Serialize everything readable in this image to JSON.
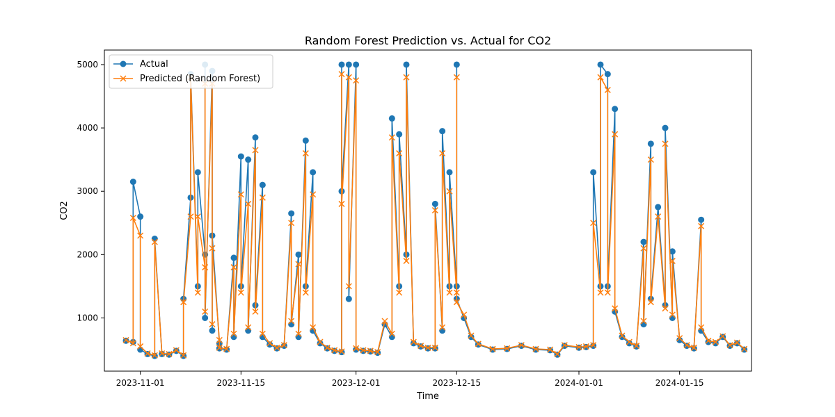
{
  "chart_data": {
    "type": "line",
    "title": "Random Forest Prediction vs. Actual for CO2",
    "xlabel": "Time",
    "ylabel": "CO2",
    "x_range": [
      "2023-10-27",
      "2024-01-25"
    ],
    "ylim": [
      160,
      5230
    ],
    "x_ticks": [
      "2023-11-01",
      "2023-11-15",
      "2023-12-01",
      "2023-12-15",
      "2024-01-01",
      "2024-01-15"
    ],
    "y_ticks": [
      1000,
      2000,
      3000,
      4000,
      5000
    ],
    "grid": false,
    "legend": "top-left",
    "series": [
      {
        "name": "Actual",
        "color": "#1f77b4",
        "marker": "circle",
        "points": [
          [
            "2023-10-30",
            640
          ],
          [
            "2023-10-31",
            620
          ],
          [
            "2023-10-31",
            3150
          ],
          [
            "2023-11-01",
            2600
          ],
          [
            "2023-11-01",
            500
          ],
          [
            "2023-11-02",
            430
          ],
          [
            "2023-11-03",
            400
          ],
          [
            "2023-11-03",
            2250
          ],
          [
            "2023-11-04",
            430
          ],
          [
            "2023-11-05",
            420
          ],
          [
            "2023-11-06",
            480
          ],
          [
            "2023-11-07",
            400
          ],
          [
            "2023-11-07",
            1300
          ],
          [
            "2023-11-08",
            2900
          ],
          [
            "2023-11-08",
            4850
          ],
          [
            "2023-11-09",
            1500
          ],
          [
            "2023-11-09",
            3300
          ],
          [
            "2023-11-10",
            2000
          ],
          [
            "2023-11-10",
            5000
          ],
          [
            "2023-11-10",
            1000
          ],
          [
            "2023-11-11",
            4900
          ],
          [
            "2023-11-11",
            800
          ],
          [
            "2023-11-11",
            2300
          ],
          [
            "2023-11-12",
            600
          ],
          [
            "2023-11-12",
            520
          ],
          [
            "2023-11-13",
            500
          ],
          [
            "2023-11-14",
            1950
          ],
          [
            "2023-11-14",
            700
          ],
          [
            "2023-11-15",
            3550
          ],
          [
            "2023-11-15",
            1500
          ],
          [
            "2023-11-16",
            3500
          ],
          [
            "2023-11-16",
            800
          ],
          [
            "2023-11-17",
            3850
          ],
          [
            "2023-11-17",
            1200
          ],
          [
            "2023-11-18",
            3100
          ],
          [
            "2023-11-18",
            700
          ],
          [
            "2023-11-19",
            580
          ],
          [
            "2023-11-20",
            520
          ],
          [
            "2023-11-21",
            560
          ],
          [
            "2023-11-22",
            2650
          ],
          [
            "2023-11-22",
            900
          ],
          [
            "2023-11-23",
            2000
          ],
          [
            "2023-11-23",
            700
          ],
          [
            "2023-11-24",
            3800
          ],
          [
            "2023-11-24",
            1500
          ],
          [
            "2023-11-25",
            3300
          ],
          [
            "2023-11-25",
            800
          ],
          [
            "2023-11-26",
            600
          ],
          [
            "2023-11-27",
            520
          ],
          [
            "2023-11-28",
            480
          ],
          [
            "2023-11-29",
            460
          ],
          [
            "2023-11-29",
            5000
          ],
          [
            "2023-11-29",
            3000
          ],
          [
            "2023-11-30",
            5000
          ],
          [
            "2023-11-30",
            1300
          ],
          [
            "2023-12-01",
            5000
          ],
          [
            "2023-12-01",
            500
          ],
          [
            "2023-12-02",
            480
          ],
          [
            "2023-12-03",
            470
          ],
          [
            "2023-12-04",
            450
          ],
          [
            "2023-12-05",
            900
          ],
          [
            "2023-12-06",
            700
          ],
          [
            "2023-12-06",
            4150
          ],
          [
            "2023-12-07",
            1500
          ],
          [
            "2023-12-07",
            3900
          ],
          [
            "2023-12-08",
            2000
          ],
          [
            "2023-12-08",
            5000
          ],
          [
            "2023-12-09",
            600
          ],
          [
            "2023-12-10",
            550
          ],
          [
            "2023-12-11",
            520
          ],
          [
            "2023-12-12",
            520
          ],
          [
            "2023-12-12",
            2800
          ],
          [
            "2023-12-13",
            800
          ],
          [
            "2023-12-13",
            3950
          ],
          [
            "2023-12-14",
            1500
          ],
          [
            "2023-12-14",
            3300
          ],
          [
            "2023-12-15",
            1500
          ],
          [
            "2023-12-15",
            5000
          ],
          [
            "2023-12-15",
            1300
          ],
          [
            "2023-12-16",
            1000
          ],
          [
            "2023-12-17",
            700
          ],
          [
            "2023-12-18",
            580
          ],
          [
            "2023-12-20",
            500
          ],
          [
            "2023-12-22",
            510
          ],
          [
            "2023-12-24",
            560
          ],
          [
            "2023-12-26",
            500
          ],
          [
            "2023-12-28",
            490
          ],
          [
            "2023-12-29",
            420
          ],
          [
            "2023-12-30",
            560
          ],
          [
            "2024-01-01",
            530
          ],
          [
            "2024-01-02",
            540
          ],
          [
            "2024-01-03",
            560
          ],
          [
            "2024-01-03",
            3300
          ],
          [
            "2024-01-04",
            1500
          ],
          [
            "2024-01-04",
            5000
          ],
          [
            "2024-01-05",
            4850
          ],
          [
            "2024-01-05",
            1500
          ],
          [
            "2024-01-06",
            4300
          ],
          [
            "2024-01-06",
            1100
          ],
          [
            "2024-01-07",
            700
          ],
          [
            "2024-01-08",
            600
          ],
          [
            "2024-01-09",
            550
          ],
          [
            "2024-01-10",
            2200
          ],
          [
            "2024-01-10",
            900
          ],
          [
            "2024-01-11",
            3750
          ],
          [
            "2024-01-11",
            1300
          ],
          [
            "2024-01-12",
            2750
          ],
          [
            "2024-01-13",
            1200
          ],
          [
            "2024-01-13",
            4000
          ],
          [
            "2024-01-14",
            1000
          ],
          [
            "2024-01-14",
            2050
          ],
          [
            "2024-01-15",
            650
          ],
          [
            "2024-01-16",
            560
          ],
          [
            "2024-01-17",
            520
          ],
          [
            "2024-01-18",
            2550
          ],
          [
            "2024-01-18",
            800
          ],
          [
            "2024-01-19",
            620
          ],
          [
            "2024-01-20",
            600
          ],
          [
            "2024-01-21",
            700
          ],
          [
            "2024-01-22",
            560
          ],
          [
            "2024-01-23",
            600
          ],
          [
            "2024-01-24",
            500
          ]
        ]
      },
      {
        "name": "Predicted (Random Forest)",
        "color": "#ff7f0e",
        "marker": "x",
        "points": [
          [
            "2023-10-30",
            650
          ],
          [
            "2023-10-31",
            600
          ],
          [
            "2023-10-31",
            2580
          ],
          [
            "2023-11-01",
            2300
          ],
          [
            "2023-11-01",
            550
          ],
          [
            "2023-11-02",
            440
          ],
          [
            "2023-11-03",
            410
          ],
          [
            "2023-11-03",
            2200
          ],
          [
            "2023-11-04",
            440
          ],
          [
            "2023-11-05",
            430
          ],
          [
            "2023-11-06",
            490
          ],
          [
            "2023-11-07",
            410
          ],
          [
            "2023-11-07",
            1250
          ],
          [
            "2023-11-08",
            2600
          ],
          [
            "2023-11-08",
            4800
          ],
          [
            "2023-11-09",
            1400
          ],
          [
            "2023-11-09",
            2600
          ],
          [
            "2023-11-10",
            1800
          ],
          [
            "2023-11-10",
            4700
          ],
          [
            "2023-11-10",
            1100
          ],
          [
            "2023-11-11",
            4700
          ],
          [
            "2023-11-11",
            900
          ],
          [
            "2023-11-11",
            2100
          ],
          [
            "2023-11-12",
            650
          ],
          [
            "2023-11-12",
            530
          ],
          [
            "2023-11-13",
            510
          ],
          [
            "2023-11-14",
            1800
          ],
          [
            "2023-11-14",
            750
          ],
          [
            "2023-11-15",
            2950
          ],
          [
            "2023-11-15",
            1400
          ],
          [
            "2023-11-16",
            2800
          ],
          [
            "2023-11-16",
            850
          ],
          [
            "2023-11-17",
            3650
          ],
          [
            "2023-11-17",
            1100
          ],
          [
            "2023-11-18",
            2900
          ],
          [
            "2023-11-18",
            750
          ],
          [
            "2023-11-19",
            600
          ],
          [
            "2023-11-20",
            530
          ],
          [
            "2023-11-21",
            570
          ],
          [
            "2023-11-22",
            2500
          ],
          [
            "2023-11-22",
            950
          ],
          [
            "2023-11-23",
            1850
          ],
          [
            "2023-11-23",
            750
          ],
          [
            "2023-11-24",
            3600
          ],
          [
            "2023-11-24",
            1400
          ],
          [
            "2023-11-25",
            2950
          ],
          [
            "2023-11-25",
            850
          ],
          [
            "2023-11-26",
            620
          ],
          [
            "2023-11-27",
            530
          ],
          [
            "2023-11-28",
            490
          ],
          [
            "2023-11-29",
            470
          ],
          [
            "2023-11-29",
            4850
          ],
          [
            "2023-11-29",
            2800
          ],
          [
            "2023-11-30",
            4800
          ],
          [
            "2023-11-30",
            1500
          ],
          [
            "2023-12-01",
            4750
          ],
          [
            "2023-12-01",
            520
          ],
          [
            "2023-12-02",
            490
          ],
          [
            "2023-12-03",
            480
          ],
          [
            "2023-12-04",
            460
          ],
          [
            "2023-12-05",
            950
          ],
          [
            "2023-12-06",
            750
          ],
          [
            "2023-12-06",
            3850
          ],
          [
            "2023-12-07",
            1400
          ],
          [
            "2023-12-07",
            3600
          ],
          [
            "2023-12-08",
            1900
          ],
          [
            "2023-12-08",
            4800
          ],
          [
            "2023-12-09",
            620
          ],
          [
            "2023-12-10",
            560
          ],
          [
            "2023-12-11",
            530
          ],
          [
            "2023-12-12",
            530
          ],
          [
            "2023-12-12",
            2700
          ],
          [
            "2023-12-13",
            850
          ],
          [
            "2023-12-13",
            3600
          ],
          [
            "2023-12-14",
            1400
          ],
          [
            "2023-12-14",
            3000
          ],
          [
            "2023-12-15",
            1400
          ],
          [
            "2023-12-15",
            4800
          ],
          [
            "2023-12-15",
            1250
          ],
          [
            "2023-12-16",
            1050
          ],
          [
            "2023-12-17",
            720
          ],
          [
            "2023-12-18",
            590
          ],
          [
            "2023-12-20",
            510
          ],
          [
            "2023-12-22",
            520
          ],
          [
            "2023-12-24",
            570
          ],
          [
            "2023-12-26",
            510
          ],
          [
            "2023-12-28",
            500
          ],
          [
            "2023-12-29",
            430
          ],
          [
            "2023-12-30",
            570
          ],
          [
            "2024-01-01",
            540
          ],
          [
            "2024-01-02",
            550
          ],
          [
            "2024-01-03",
            570
          ],
          [
            "2024-01-03",
            2500
          ],
          [
            "2024-01-04",
            1400
          ],
          [
            "2024-01-04",
            4800
          ],
          [
            "2024-01-05",
            4600
          ],
          [
            "2024-01-05",
            1400
          ],
          [
            "2024-01-06",
            3900
          ],
          [
            "2024-01-06",
            1150
          ],
          [
            "2024-01-07",
            720
          ],
          [
            "2024-01-08",
            620
          ],
          [
            "2024-01-09",
            560
          ],
          [
            "2024-01-10",
            2100
          ],
          [
            "2024-01-10",
            950
          ],
          [
            "2024-01-11",
            3500
          ],
          [
            "2024-01-11",
            1250
          ],
          [
            "2024-01-12",
            2600
          ],
          [
            "2024-01-13",
            1150
          ],
          [
            "2024-01-13",
            3750
          ],
          [
            "2024-01-14",
            1050
          ],
          [
            "2024-01-14",
            1900
          ],
          [
            "2024-01-15",
            680
          ],
          [
            "2024-01-16",
            570
          ],
          [
            "2024-01-17",
            530
          ],
          [
            "2024-01-18",
            2450
          ],
          [
            "2024-01-18",
            850
          ],
          [
            "2024-01-19",
            640
          ],
          [
            "2024-01-20",
            620
          ],
          [
            "2024-01-21",
            710
          ],
          [
            "2024-01-22",
            570
          ],
          [
            "2024-01-23",
            610
          ],
          [
            "2024-01-24",
            510
          ]
        ]
      }
    ]
  }
}
